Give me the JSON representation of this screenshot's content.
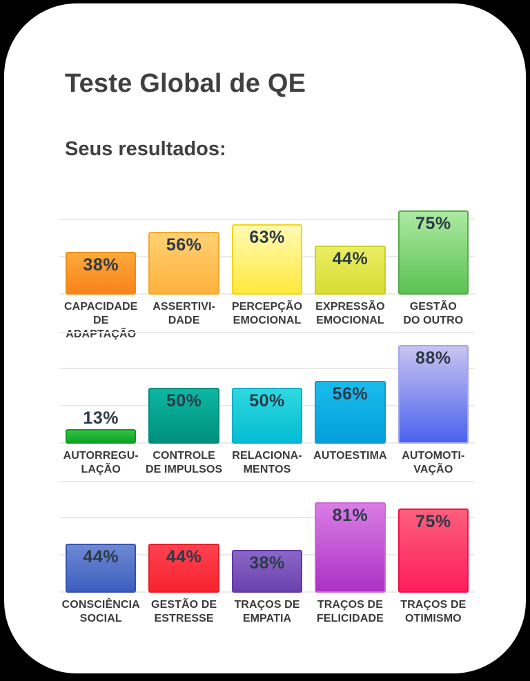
{
  "page": {
    "title": "Teste Global de QE",
    "subtitle": "Seus resultados:"
  },
  "colors": {
    "background": "#000000",
    "card": "#ffffff",
    "gridline": "#eaeaea",
    "value_text": "#2c3a47",
    "label_text": "#3a3a3a",
    "title_text": "#404040"
  },
  "chart_data": {
    "type": "bar",
    "title": "Teste Global de QE",
    "subtitle": "Seus resultados:",
    "unit": "%",
    "ylim": [
      0,
      100
    ],
    "gridline_step_percent": 33.33,
    "grid_on": true,
    "legend": "none",
    "rows": [
      {
        "show_top_gridline": false,
        "bars": [
          {
            "category": "CAPACIDADE\nDE ADAPTAÇÃO",
            "value": 38,
            "value_label": "38%",
            "color_top": "#fbaa3a",
            "color_bottom": "#f8821a",
            "border_color": "#ef8d15"
          },
          {
            "category": "ASSERTIVI-\nDADE",
            "value": 56,
            "value_label": "56%",
            "color_top": "#ffd173",
            "color_bottom": "#feb23c",
            "border_color": "#f5a92c"
          },
          {
            "category": "PERCEPÇÃO\nEMOCIONAL",
            "value": 63,
            "value_label": "63%",
            "color_top": "#fffab4",
            "color_bottom": "#ffe93d",
            "border_color": "#f2d41c"
          },
          {
            "category": "EXPRESSÃO\nEMOCIONAL",
            "value": 44,
            "value_label": "44%",
            "color_top": "#eaee63",
            "color_bottom": "#d8dc33",
            "border_color": "#c9cf25"
          },
          {
            "category": "GESTÃO\nDO OUTRO",
            "value": 75,
            "value_label": "75%",
            "color_top": "#ace9a2",
            "color_bottom": "#5cc253",
            "border_color": "#57ab4a"
          }
        ]
      },
      {
        "show_top_gridline": true,
        "bars": [
          {
            "category": "AUTORREGU-\nLAÇÃO",
            "value": 13,
            "value_label": "13%",
            "color_top": "#35c143",
            "color_bottom": "#0ba426",
            "border_color": "#0b9e23"
          },
          {
            "category": "CONTROLE\nDE IMPULSOS",
            "value": 50,
            "value_label": "50%",
            "color_top": "#0cb7a2",
            "color_bottom": "#00907d",
            "border_color": "#008d7a"
          },
          {
            "category": "RELACIONA-\nMENTOS",
            "value": 50,
            "value_label": "50%",
            "color_top": "#2fd9de",
            "color_bottom": "#04bcd4",
            "border_color": "#06b0c4"
          },
          {
            "category": "AUTOESTIMA",
            "value": 56,
            "value_label": "56%",
            "color_top": "#19bbec",
            "color_bottom": "#04a0dd",
            "border_color": "#0a9bd4"
          },
          {
            "category": "AUTOMOTI-\nVAÇÃO",
            "value": 88,
            "value_label": "88%",
            "color_top": "#c9c3f1",
            "color_bottom": "#4a63ee",
            "border_color": "#a3a7e8"
          }
        ]
      },
      {
        "show_top_gridline": true,
        "bars": [
          {
            "category": "CONSCIÊNCIA\nSOCIAL",
            "value": 44,
            "value_label": "44%",
            "color_top": "#6e89d2",
            "color_bottom": "#3d5ec0",
            "border_color": "#3452ae"
          },
          {
            "category": "GESTÃO DE\nESTRESSE",
            "value": 44,
            "value_label": "44%",
            "color_top": "#ff4250",
            "color_bottom": "#f7232f",
            "border_color": "#e71b26"
          },
          {
            "category": "TRAÇOS DE\nEMPATIA",
            "value": 38,
            "value_label": "38%",
            "color_top": "#8a67c6",
            "color_bottom": "#6b41ae",
            "border_color": "#5f37a2"
          },
          {
            "category": "TRAÇOS DE\nFELICIDADE",
            "value": 81,
            "value_label": "81%",
            "color_top": "#da7de4",
            "color_bottom": "#ac31c5",
            "border_color": "#cb6ad5"
          },
          {
            "category": "TRAÇOS DE\nOTIMISMO",
            "value": 75,
            "value_label": "75%",
            "color_top": "#fc5f7c",
            "color_bottom": "#fe1d5d",
            "border_color": "#f2114e"
          }
        ]
      }
    ]
  }
}
